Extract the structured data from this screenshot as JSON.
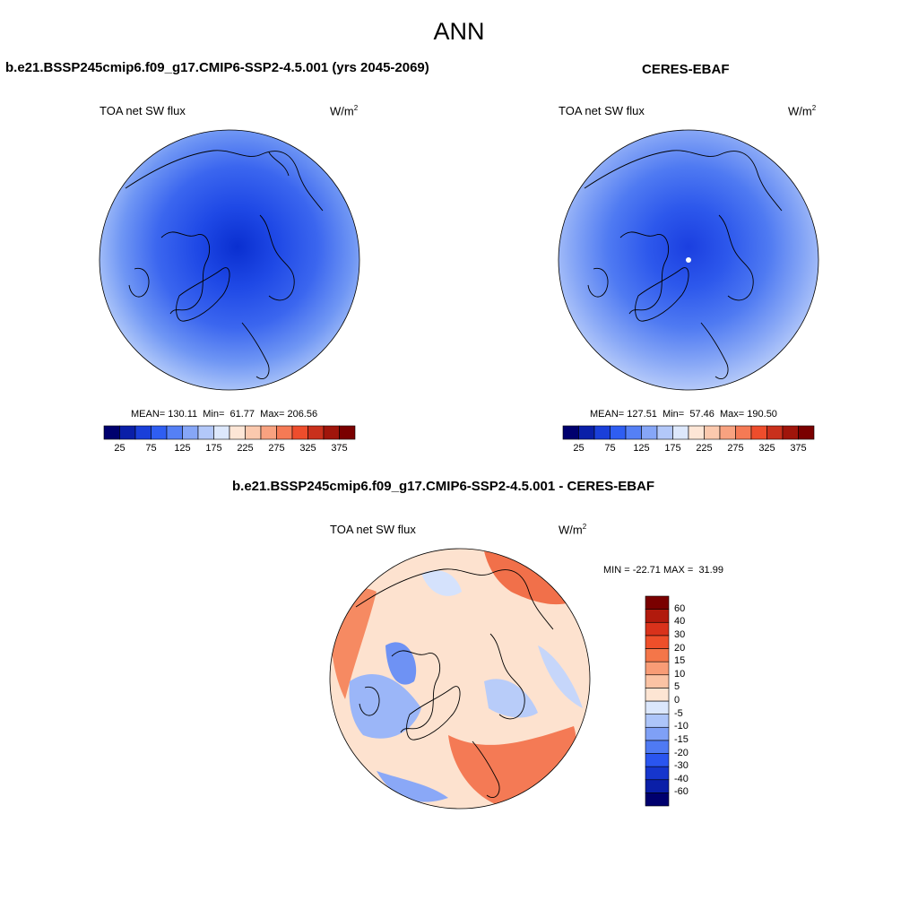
{
  "page": {
    "title": "ANN"
  },
  "panels": [
    {
      "case": "b.e21.BSSP245cmip6.f09_g17.CMIP6-SSP2-4.5.001 (yrs 2045-2069)",
      "variable": "TOA net SW flux",
      "units": "W/m",
      "units_sup": "2",
      "stats": {
        "mean_label": "MEAN=",
        "mean": "130.11",
        "min_label": "Min=",
        "min": "61.77",
        "max_label": "Max=",
        "max": "206.56"
      }
    },
    {
      "case": "CERES-EBAF",
      "variable": "TOA net SW flux",
      "units": "W/m",
      "units_sup": "2",
      "stats": {
        "mean_label": "MEAN=",
        "mean": "127.51",
        "min_label": "Min=",
        "min": "57.46",
        "max_label": "Max=",
        "max": "190.50"
      }
    },
    {
      "case": "b.e21.BSSP245cmip6.f09_g17.CMIP6-SSP2-4.5.001 - CERES-EBAF",
      "variable": "TOA net SW flux",
      "units": "W/m",
      "units_sup": "2",
      "stats": {
        "min_label": "MIN =",
        "min": "-22.71",
        "max_label": "MAX =",
        "max": "31.99"
      }
    }
  ],
  "colorbar_abs": {
    "colors": [
      "#00006e",
      "#0a1fa8",
      "#1a3fd9",
      "#2f5ef2",
      "#5580f5",
      "#86a6f7",
      "#b3c8f9",
      "#dde8fc",
      "#fde6d6",
      "#fbc9ae",
      "#f8a280",
      "#f57a55",
      "#ee4d2c",
      "#c9301c",
      "#a0150b",
      "#7a0000"
    ],
    "ticks": [
      "25",
      "75",
      "125",
      "175",
      "225",
      "275",
      "325",
      "375"
    ]
  },
  "colorbar_diff": {
    "colors": [
      "#00006e",
      "#0a1fa8",
      "#1636cd",
      "#2a55ef",
      "#4f7af3",
      "#7fa0f6",
      "#adc5f9",
      "#dbe7fc",
      "#fde5d3",
      "#fbc3a4",
      "#f89c76",
      "#f47649",
      "#ee4f2a",
      "#d9321b",
      "#b11a0d",
      "#7a0000"
    ],
    "ticks": [
      "-60",
      "-40",
      "-30",
      "-20",
      "-15",
      "-10",
      "-5",
      "0",
      "5",
      "10",
      "15",
      "20",
      "30",
      "40",
      "60"
    ]
  }
}
